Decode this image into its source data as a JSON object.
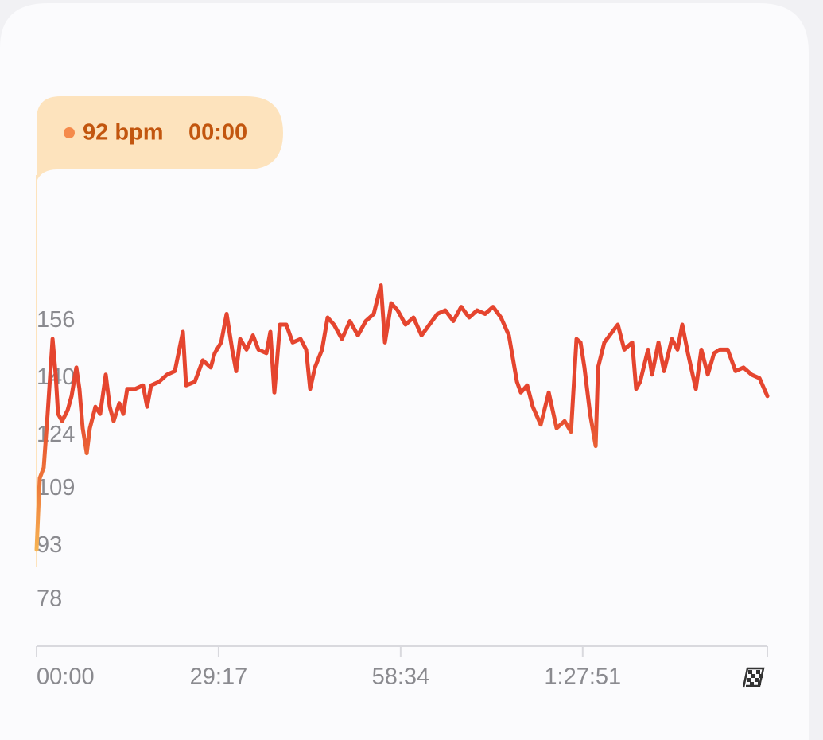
{
  "chart_data": {
    "type": "line",
    "tooltip": {
      "value_label": "92 bpm",
      "time": "00:00"
    },
    "x": [
      0,
      31,
      69,
      107,
      154,
      184,
      207,
      246,
      299,
      338,
      384,
      414,
      445,
      484,
      514,
      568,
      614,
      668,
      706,
      744,
      798,
      837,
      875,
      952,
      1028,
      1067,
      1105,
      1182,
      1259,
      1335,
      1412,
      1443,
      1527,
      1604,
      1681,
      1719,
      1781,
      1834,
      1888,
      1926,
      1965,
      2026,
      2088,
      2141,
      2218,
      2256,
      2295,
      2349,
      2410,
      2471,
      2548,
      2602,
      2640,
      2686,
      2755,
      2809,
      2870,
      2947,
      3024,
      3101,
      3177,
      3254,
      3323,
      3362,
      3423,
      3484,
      3561,
      3638,
      3715,
      3791,
      3868,
      3945,
      4022,
      4098,
      4175,
      4252,
      4329,
      4405,
      4482,
      4559,
      4636,
      4674,
      4735,
      4789,
      4866,
      4943,
      5019,
      5096,
      5158,
      5211,
      5250,
      5288,
      5342,
      5396,
      5419,
      5480,
      5557,
      5610,
      5672,
      5749,
      5787,
      5825,
      5902,
      5940,
      6002,
      6056,
      6132,
      6186,
      6232,
      6286,
      6363,
      6416,
      6478,
      6539,
      6593,
      6670,
      6746,
      6823,
      6900,
      6977,
      7053
    ],
    "series": [
      {
        "color": "#e5452f",
        "gradient": [
          "#f9c25a",
          "#ee7a3a",
          "#e5452f"
        ],
        "values": [
          92,
          112,
          115,
          130,
          151,
          141,
          130,
          128,
          131,
          135,
          143,
          137,
          126,
          119,
          126,
          132,
          130,
          141,
          132,
          128,
          133,
          130,
          137,
          137,
          138,
          132,
          138,
          139,
          141,
          142,
          153,
          138,
          139,
          145,
          143,
          147,
          150,
          158,
          148,
          142,
          151,
          148,
          152,
          148,
          147,
          153,
          136,
          155,
          155,
          150,
          151,
          148,
          137,
          143,
          148,
          157,
          155,
          151,
          156,
          152,
          156,
          158,
          166,
          150,
          161,
          159,
          155,
          157,
          152,
          155,
          158,
          159,
          156,
          160,
          157,
          159,
          158,
          160,
          157,
          152,
          139,
          136,
          138,
          132,
          127,
          136,
          126,
          128,
          125,
          151,
          150,
          143,
          130,
          121,
          143,
          150,
          153,
          155,
          148,
          150,
          137,
          139,
          148,
          141,
          150,
          142,
          151,
          148,
          155,
          147,
          137,
          148,
          141,
          147,
          148,
          148,
          142,
          143,
          141,
          140,
          135
        ]
      }
    ],
    "xlim": [
      0,
      7053
    ],
    "xticks": [
      {
        "value": 0,
        "label": "00:00"
      },
      {
        "value": 1757,
        "label": "29:17"
      },
      {
        "value": 3514,
        "label": "58:34"
      },
      {
        "value": 5271,
        "label": "1:27:51"
      }
    ],
    "ylim": [
      65,
      200
    ],
    "yticks": [
      78,
      93,
      109,
      124,
      140,
      156
    ],
    "grid": false
  }
}
